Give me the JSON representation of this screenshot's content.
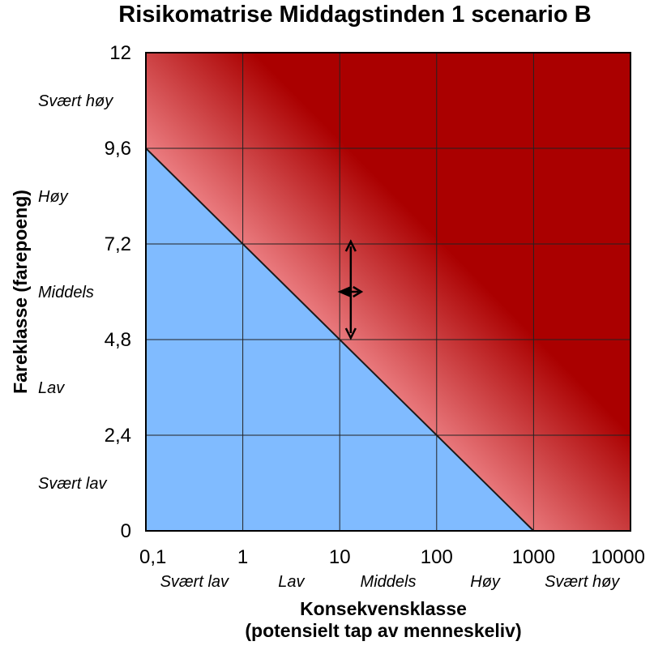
{
  "chart_data": {
    "type": "heatmap",
    "title": "Risikomatrise Middagstinden 1 scenario B",
    "xlabel": [
      "Konsekvensklasse",
      "(potensielt tap av menneskeliv)"
    ],
    "ylabel": "Fareklasse (farepoeng)",
    "x_scale": "log",
    "xlim": [
      0.1,
      10000
    ],
    "ylim": [
      0,
      12
    ],
    "x_ticks": [
      {
        "value": 0.1,
        "label": "0,1"
      },
      {
        "value": 1,
        "label": "1"
      },
      {
        "value": 10,
        "label": "10"
      },
      {
        "value": 100,
        "label": "100"
      },
      {
        "value": 1000,
        "label": "1000"
      },
      {
        "value": 10000,
        "label": "10000"
      }
    ],
    "y_ticks": [
      {
        "value": 0,
        "label": "0"
      },
      {
        "value": 2.4,
        "label": "2,4"
      },
      {
        "value": 4.8,
        "label": "4,8"
      },
      {
        "value": 7.2,
        "label": "7,2"
      },
      {
        "value": 9.6,
        "label": "9,6"
      },
      {
        "value": 12,
        "label": "12"
      }
    ],
    "x_classes": [
      {
        "label": "Svært lav",
        "from": 0.1,
        "to": 1
      },
      {
        "label": "Lav",
        "from": 1,
        "to": 10
      },
      {
        "label": "Middels",
        "from": 10,
        "to": 100
      },
      {
        "label": "Høy",
        "from": 100,
        "to": 1000
      },
      {
        "label": "Svært høy",
        "from": 1000,
        "to": 10000
      }
    ],
    "y_classes": [
      {
        "label": "Svært høy",
        "from": 9.6,
        "to": 12
      },
      {
        "label": "Høy",
        "from": 7.2,
        "to": 9.6
      },
      {
        "label": "Middels",
        "from": 4.8,
        "to": 7.2
      },
      {
        "label": "Lav",
        "from": 2.4,
        "to": 4.8
      },
      {
        "label": "Svært lav",
        "from": 0,
        "to": 2.4
      }
    ],
    "grid": true,
    "zones": {
      "low_boundary": [
        [
          0.1,
          9.6
        ],
        [
          1000,
          0
        ]
      ],
      "colors": {
        "low": "#80bbff",
        "medium": "#ffa3a8",
        "high": "#aa0000",
        "line": "#1a1a1a"
      }
    },
    "scenario_marker": {
      "x": 13,
      "y": 6.0,
      "x_range": [
        9.5,
        17
      ],
      "y_range": [
        4.8,
        7.3
      ]
    }
  }
}
